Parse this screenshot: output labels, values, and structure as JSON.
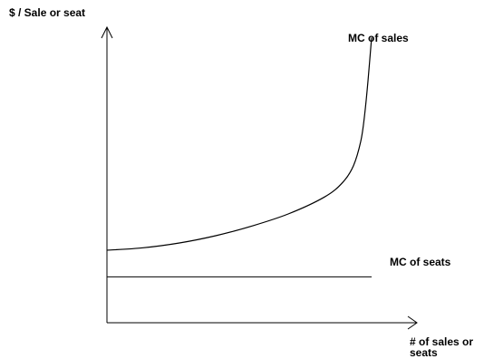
{
  "chart_data": {
    "type": "line",
    "ylabel": "$ / Sale or seat",
    "xlabel_lines": [
      "# of sales or",
      "seats"
    ],
    "grid": false,
    "series": [
      {
        "name": "MC of sales",
        "points": [
          [
            0,
            30
          ],
          [
            10,
            31
          ],
          [
            20,
            33
          ],
          [
            30,
            36
          ],
          [
            40,
            40
          ],
          [
            50,
            45
          ],
          [
            60,
            52
          ],
          [
            65,
            58
          ],
          [
            68,
            65
          ],
          [
            70,
            75
          ],
          [
            71,
            85
          ],
          [
            72,
            100
          ],
          [
            73,
            118
          ]
        ]
      },
      {
        "name": "MC of seats",
        "points": [
          [
            0,
            19
          ],
          [
            73,
            19
          ]
        ]
      }
    ],
    "xlim": [
      0,
      80
    ],
    "ylim": [
      0,
      120
    ]
  },
  "colors": {
    "line": "#000000",
    "text": "#000000",
    "background": "#ffffff"
  }
}
